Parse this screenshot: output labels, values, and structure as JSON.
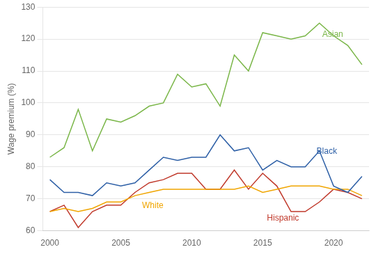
{
  "chart_data": {
    "type": "line",
    "ylabel": "Wage premium (%)",
    "x": [
      2000,
      2001,
      2002,
      2003,
      2004,
      2005,
      2006,
      2007,
      2008,
      2009,
      2010,
      2011,
      2012,
      2013,
      2014,
      2015,
      2016,
      2017,
      2018,
      2019,
      2020,
      2021,
      2022
    ],
    "series": [
      {
        "name": "Asian",
        "color": "#7ab648",
        "values": [
          83,
          86,
          98,
          85,
          95,
          94,
          96,
          99,
          100,
          109,
          105,
          106,
          99,
          115,
          110,
          122,
          121,
          120,
          121,
          125,
          121,
          118,
          112
        ]
      },
      {
        "name": "Black",
        "color": "#2d5fa6",
        "values": [
          76,
          72,
          72,
          71,
          75,
          74,
          75,
          79,
          83,
          82,
          83,
          83,
          90,
          85,
          86,
          79,
          82,
          80,
          80,
          85,
          74,
          72,
          77
        ]
      },
      {
        "name": "White",
        "color": "#f0a500",
        "values": [
          66,
          67,
          66,
          67,
          69,
          69,
          71,
          72,
          73,
          73,
          73,
          73,
          73,
          73,
          74,
          72,
          73,
          74,
          74,
          74,
          73,
          73,
          71
        ]
      },
      {
        "name": "Hispanic",
        "color": "#c0392b",
        "values": [
          66,
          68,
          61,
          66,
          68,
          68,
          72,
          75,
          76,
          78,
          78,
          73,
          73,
          79,
          73,
          78,
          74,
          66,
          66,
          69,
          73,
          72,
          70
        ]
      }
    ],
    "annotations": [
      {
        "text": "Asian",
        "x": 2019.2,
        "y": 120.0,
        "color": "#7ab648"
      },
      {
        "text": "Black",
        "x": 2018.8,
        "y": 83.5,
        "color": "#2d5fa6"
      },
      {
        "text": "White",
        "x": 2006.5,
        "y": 66.5,
        "color": "#f0a500"
      },
      {
        "text": "Hispanic",
        "x": 2015.3,
        "y": 62.5,
        "color": "#c0392b"
      }
    ],
    "xlim": [
      1999.5,
      2022.5
    ],
    "xticks": [
      2000,
      2005,
      2010,
      2015,
      2020
    ],
    "ylim": [
      60,
      130
    ],
    "yticks": [
      60,
      70,
      80,
      90,
      100,
      110,
      120,
      130
    ],
    "grid": "y"
  }
}
